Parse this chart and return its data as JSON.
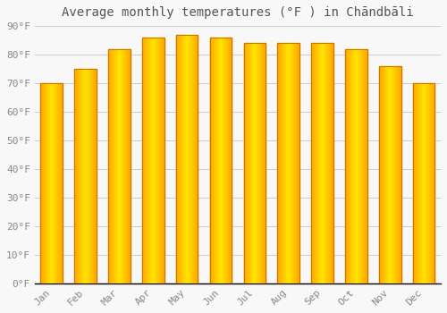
{
  "title": "Average monthly temperatures (°F ) in Chāndbāli",
  "months": [
    "Jan",
    "Feb",
    "Mar",
    "Apr",
    "May",
    "Jun",
    "Jul",
    "Aug",
    "Sep",
    "Oct",
    "Nov",
    "Dec"
  ],
  "values": [
    70,
    75,
    82,
    86,
    87,
    86,
    84,
    84,
    84,
    82,
    76,
    70
  ],
  "bar_color_center": "#FFA500",
  "bar_color_edge": "#E08C00",
  "background_color": "#f8f8f8",
  "plot_bg_color": "#f8f8f8",
  "grid_color": "#cccccc",
  "ylim": [
    0,
    90
  ],
  "yticks": [
    0,
    10,
    20,
    30,
    40,
    50,
    60,
    70,
    80,
    90
  ],
  "ytick_labels": [
    "0°F",
    "10°F",
    "20°F",
    "30°F",
    "40°F",
    "50°F",
    "60°F",
    "70°F",
    "80°F",
    "90°F"
  ],
  "title_fontsize": 10,
  "tick_fontsize": 8,
  "tick_color": "#888888",
  "bar_width": 0.65,
  "axis_line_color": "#000000"
}
